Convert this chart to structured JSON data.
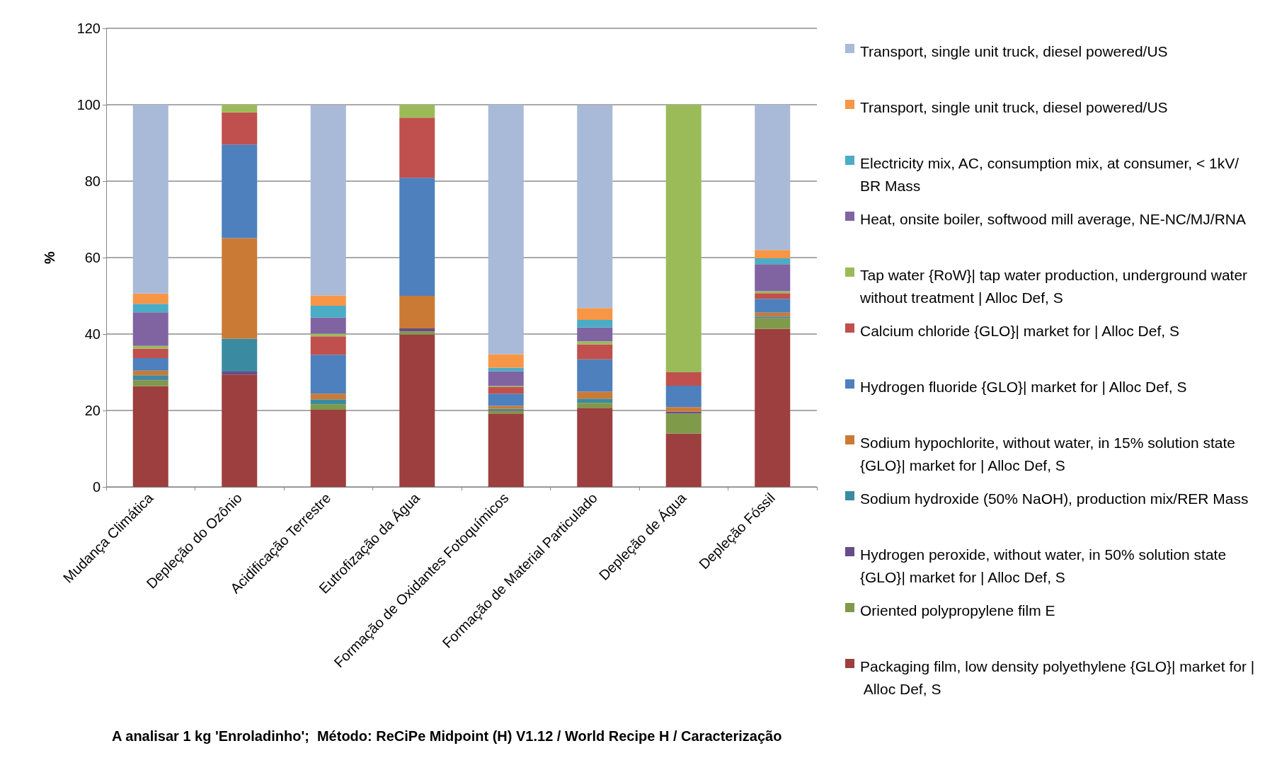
{
  "chart_data": {
    "type": "bar",
    "stacked": true,
    "ylabel": "%",
    "ylim": [
      0,
      120
    ],
    "yticks": [
      0,
      20,
      40,
      60,
      80,
      100,
      120
    ],
    "grid": "y",
    "legend": "right",
    "categories": [
      "Mudança Climática",
      "Depleção do Ozônio",
      "Acidificação Terrestre",
      "Eutrofização da Água",
      "Formação de Oxidantes Fotoquímicos",
      "Formação de Material Particulado",
      "Depleção de Água",
      "Depleção Fóssil"
    ],
    "series": [
      {
        "name": "Packaging film, low density polyethylene {GLO}| market for | Alloc Def, S",
        "color": "#9c3f3e",
        "values": [
          26.4,
          29.4,
          20.2,
          39.9,
          19.2,
          20.7,
          14.0,
          41.4
        ]
      },
      {
        "name": "Oriented polypropylene film E",
        "color": "#7f9a48",
        "values": [
          1.5,
          0,
          1.4,
          0.8,
          0.7,
          1.3,
          5.2,
          2.7
        ]
      },
      {
        "name": "Hydrogen peroxide, without water, in 50% solution state {GLO}| market for | Alloc Def, S",
        "color": "#684c8a",
        "values": [
          0.2,
          0.8,
          null,
          0.8,
          0.1,
          null,
          0.5,
          0.1
        ]
      },
      {
        "name": "Sodium hydroxide (50% NaOH), production mix/RER Mass",
        "color": "#3a8ba1",
        "values": [
          1.1,
          8.6,
          1.3,
          0,
          0.4,
          1.1,
          0,
          0.4
        ]
      },
      {
        "name": "Sodium hypochlorite, without water, in 15% solution state {GLO}| market for | Alloc Def, S",
        "color": "#cb7a35",
        "values": [
          1.2,
          26.3,
          1.5,
          8.5,
          0.8,
          1.8,
          1.2,
          1.0
        ]
      },
      {
        "name": "Hydrogen fluoride {GLO}| market for | Alloc Def, S",
        "color": "#4d80bd",
        "values": [
          3.3,
          24.5,
          10.2,
          30.9,
          3.2,
          8.5,
          5.6,
          3.6
        ]
      },
      {
        "name": "Calcium chloride {GLO}| market for | Alloc Def, S",
        "color": "#c0504d",
        "values": [
          2.5,
          8.4,
          4.8,
          15.7,
          1.7,
          3.9,
          3.5,
          1.5
        ]
      },
      {
        "name": "Tap water {RoW}| tap water production, underground water without treatment | Alloc Def, S",
        "color": "#9bbb59",
        "values": [
          0.7,
          2.0,
          0.7,
          3.4,
          0.3,
          0.8,
          70.0,
          0.5
        ]
      },
      {
        "name": "Heat, onsite boiler, softwood mill average, NE-NC/MJ/RNA",
        "color": "#8064a2",
        "values": [
          8.8,
          0,
          4.2,
          0,
          3.9,
          3.6,
          0,
          7.1
        ]
      },
      {
        "name": "Electricity mix, AC, consumption mix, at consumer, < 1kV/BR Mass",
        "color": "#4bacc6",
        "values": [
          2.2,
          0,
          3.1,
          0,
          0.9,
          2.0,
          0,
          1.5
        ]
      },
      {
        "name": "Transport, single unit truck, diesel powered/US",
        "color": "#f79646",
        "values": [
          2.7,
          0,
          2.7,
          0,
          3.5,
          3.1,
          0,
          2.2
        ]
      },
      {
        "name": "Transport, single unit truck, diesel powered/US",
        "color": "#a9b9d8",
        "values": [
          49.4,
          0,
          49.8,
          0,
          65.3,
          53.1,
          0,
          38.0
        ]
      }
    ],
    "annotations": [
      "A analisar 1 kg 'Enroladinho';  Método: ReCiPe Midpoint (H) V1.12 / World Recipe H / Caracterização"
    ]
  }
}
